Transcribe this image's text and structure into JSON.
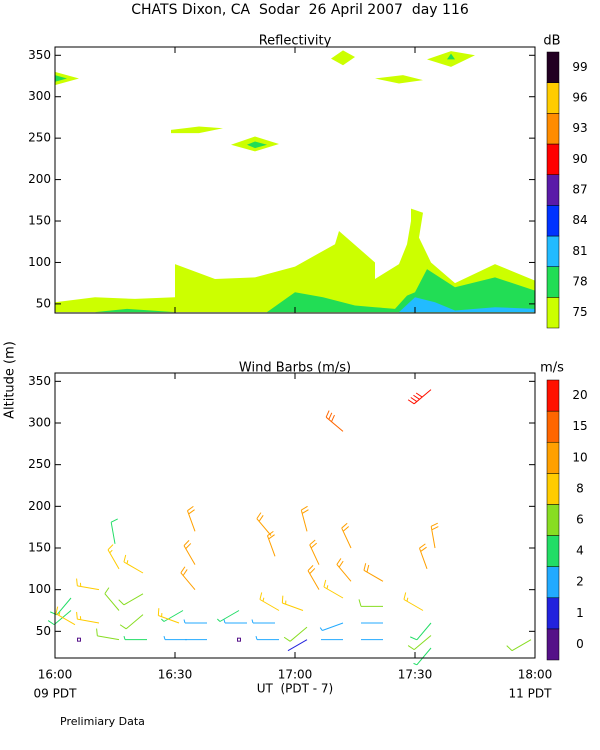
{
  "title": "CHATS Dixon, CA  Sodar  26 April 2007  day 116",
  "ylabel": "Altitude (m)",
  "xlabel": "UT  (PDT - 7)",
  "x_left_note": "09 PDT",
  "x_right_note": "11 PDT",
  "footnote": "Prelimiary Data",
  "chart_data": [
    {
      "type": "contour",
      "title": "Reflectivity",
      "unit": "dB",
      "xlim": [
        0,
        120
      ],
      "ylim": [
        39,
        360
      ],
      "xticks": [
        0,
        30,
        60,
        90,
        120
      ],
      "show_xtick_labels": false,
      "yticks": [
        50,
        100,
        150,
        200,
        250,
        300,
        350
      ],
      "levels": [
        75,
        78,
        81,
        84,
        87,
        90,
        93,
        96,
        99
      ],
      "level_colors": [
        "#ccff00",
        "#22dd55",
        "#22bbff",
        "#0033ff",
        "#5a1aa8",
        "#ff0000",
        "#ff8c00",
        "#ffcc00",
        "#220022"
      ],
      "regions": [
        {
          "level": 75,
          "points": [
            [
              0,
              52
            ],
            [
              10,
              58
            ],
            [
              20,
              56
            ],
            [
              30,
              58
            ],
            [
              30,
              98
            ],
            [
              40,
              80
            ],
            [
              50,
              82
            ],
            [
              60,
              95
            ],
            [
              70,
              122
            ],
            [
              71,
              138
            ],
            [
              80,
              100
            ],
            [
              80,
              80
            ],
            [
              86,
              98
            ],
            [
              88,
              122
            ],
            [
              89,
              150
            ],
            [
              89,
              165
            ],
            [
              92,
              160
            ],
            [
              91,
              130
            ],
            [
              94,
              100
            ],
            [
              100,
              75
            ],
            [
              110,
              98
            ],
            [
              120,
              78
            ],
            [
              120,
              40
            ],
            [
              0,
              40
            ]
          ]
        },
        {
          "level": 78,
          "points": [
            [
              10,
              40
            ],
            [
              18,
              44
            ],
            [
              30,
              40
            ]
          ]
        },
        {
          "level": 78,
          "points": [
            [
              53,
              40
            ],
            [
              60,
              64
            ],
            [
              67,
              58
            ],
            [
              75,
              48
            ],
            [
              80,
              46
            ],
            [
              85,
              44
            ],
            [
              88,
              60
            ],
            [
              90,
              64
            ],
            [
              93,
              92
            ],
            [
              100,
              70
            ],
            [
              110,
              82
            ],
            [
              120,
              66
            ],
            [
              120,
              40
            ]
          ]
        },
        {
          "level": 81,
          "points": [
            [
              86,
              40
            ],
            [
              90,
              58
            ],
            [
              95,
              52
            ],
            [
              100,
              42
            ],
            [
              110,
              46
            ],
            [
              120,
              44
            ],
            [
              120,
              40
            ]
          ]
        },
        {
          "level": 75,
          "points": [
            [
              0,
              314
            ],
            [
              6,
              322
            ],
            [
              0,
              330
            ]
          ]
        },
        {
          "level": 78,
          "points": [
            [
              0,
              318
            ],
            [
              3,
              322
            ],
            [
              0,
              326
            ]
          ]
        },
        {
          "level": 75,
          "points": [
            [
              69,
              346
            ],
            [
              72,
              356
            ],
            [
              75,
              348
            ],
            [
              72,
              338
            ]
          ]
        },
        {
          "level": 75,
          "points": [
            [
              80,
              322
            ],
            [
              87,
              326
            ],
            [
              92,
              320
            ],
            [
              86,
              316
            ]
          ]
        },
        {
          "level": 75,
          "points": [
            [
              93,
              345
            ],
            [
              99,
              355
            ],
            [
              105,
              350
            ],
            [
              99,
              336
            ]
          ]
        },
        {
          "level": 78,
          "points": [
            [
              98,
              345
            ],
            [
              99,
              352
            ],
            [
              100,
              345
            ]
          ]
        },
        {
          "level": 75,
          "points": [
            [
              29,
              260
            ],
            [
              36,
              264
            ],
            [
              42,
              262
            ],
            [
              36,
              256
            ],
            [
              29,
              256
            ]
          ]
        },
        {
          "level": 75,
          "points": [
            [
              44,
              242
            ],
            [
              50,
              252
            ],
            [
              56,
              243
            ],
            [
              50,
              234
            ]
          ]
        },
        {
          "level": 78,
          "points": [
            [
              48,
              242
            ],
            [
              50,
              246
            ],
            [
              53,
              242
            ],
            [
              50,
              238
            ]
          ]
        }
      ]
    },
    {
      "type": "barbs",
      "title": "Wind Barbs (m/s)",
      "unit": "m/s",
      "xlim": [
        0,
        120
      ],
      "ylim": [
        18,
        360
      ],
      "xticks": [
        {
          "value": 0,
          "label": "16:00"
        },
        {
          "value": 30,
          "label": "16:30"
        },
        {
          "value": 60,
          "label": "17:00"
        },
        {
          "value": 90,
          "label": "17:30"
        },
        {
          "value": 120,
          "label": "18:00"
        }
      ],
      "show_xtick_labels": true,
      "yticks": [
        50,
        100,
        150,
        200,
        250,
        300,
        350
      ],
      "levels": [
        0,
        1,
        2,
        4,
        6,
        8,
        10,
        15,
        20
      ],
      "level_colors": [
        "#551188",
        "#2222dd",
        "#22aaff",
        "#22dd66",
        "#88dd22",
        "#ffcc00",
        "#ffa000",
        "#ff6600",
        "#ff1100"
      ],
      "barbs": [
        [
          4,
          90,
          5,
          220
        ],
        [
          4,
          75,
          5,
          230
        ],
        [
          6,
          40,
          0,
          0
        ],
        [
          5,
          58,
          8,
          300
        ],
        [
          11,
          100,
          9,
          280
        ],
        [
          11,
          60,
          9,
          280
        ],
        [
          15,
          155,
          5,
          350
        ],
        [
          16,
          125,
          9,
          330
        ],
        [
          16,
          75,
          6,
          320
        ],
        [
          16,
          40,
          7,
          280
        ],
        [
          22,
          120,
          9,
          300
        ],
        [
          22,
          95,
          7,
          240
        ],
        [
          22,
          70,
          6,
          230
        ],
        [
          23,
          40,
          4,
          270
        ],
        [
          32,
          75,
          4,
          240
        ],
        [
          31,
          60,
          8,
          290
        ],
        [
          33,
          40,
          3,
          270
        ],
        [
          35,
          170,
          10,
          340
        ],
        [
          35,
          130,
          10,
          330
        ],
        [
          35,
          100,
          10,
          320
        ],
        [
          38,
          60,
          3,
          270
        ],
        [
          38,
          40,
          2,
          270
        ],
        [
          46,
          75,
          4,
          240
        ],
        [
          46,
          40,
          0,
          0
        ],
        [
          48,
          60,
          3,
          270
        ],
        [
          54,
          165,
          10,
          320
        ],
        [
          55,
          140,
          10,
          340
        ],
        [
          56,
          75,
          8,
          300
        ],
        [
          55,
          60,
          3,
          270
        ],
        [
          56,
          40,
          3,
          270
        ],
        [
          63,
          170,
          10,
          345
        ],
        [
          66,
          130,
          10,
          335
        ],
        [
          66,
          100,
          10,
          330
        ],
        [
          62,
          75,
          8,
          290
        ],
        [
          63,
          55,
          6,
          230
        ],
        [
          63,
          40,
          1,
          240
        ],
        [
          72,
          290,
          15,
          310
        ],
        [
          74,
          150,
          10,
          335
        ],
        [
          74,
          110,
          10,
          320
        ],
        [
          72,
          90,
          8,
          300
        ],
        [
          72,
          60,
          3,
          250
        ],
        [
          72,
          40,
          2,
          270
        ],
        [
          82,
          110,
          10,
          300
        ],
        [
          82,
          80,
          6,
          270
        ],
        [
          82,
          60,
          2,
          270
        ],
        [
          82,
          40,
          2,
          270
        ],
        [
          94,
          340,
          20,
          230
        ],
        [
          95,
          150,
          10,
          350
        ],
        [
          93,
          125,
          10,
          340
        ],
        [
          92,
          75,
          8,
          300
        ],
        [
          94,
          60,
          5,
          220
        ],
        [
          94,
          45,
          6,
          230
        ],
        [
          94,
          30,
          4,
          220
        ],
        [
          119,
          40,
          6,
          240
        ]
      ]
    }
  ]
}
